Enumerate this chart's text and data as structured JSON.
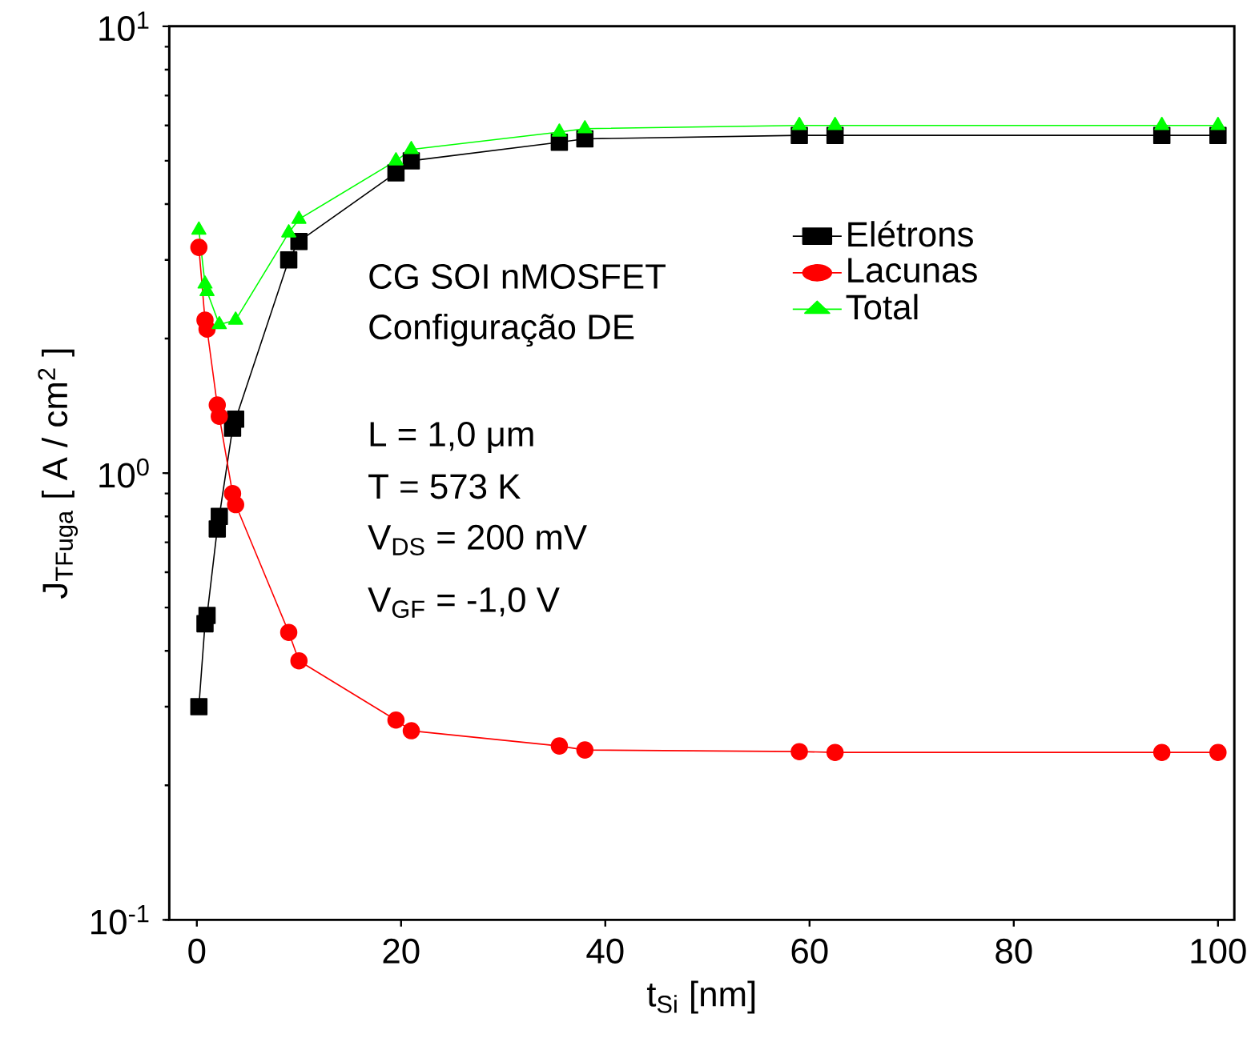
{
  "chart_data": {
    "type": "line",
    "xlabel": "t$_{Si}$ [nm]",
    "ylabel": "J$_{TFuga}$ [ A / cm$^{2}$ ]",
    "log": "y",
    "legend": "top right",
    "line_style": "solid",
    "xlim": [
      -2.7,
      101.6
    ],
    "xticks": [
      0,
      20,
      40,
      60,
      80,
      100
    ],
    "ylim": [
      0.1,
      10
    ],
    "yticks": [
      {
        "value": 0.1,
        "label": "10$^{-1}$"
      },
      {
        "value": 1,
        "label": "10$^{0}$"
      },
      {
        "value": 10,
        "label": "10$^{1}$"
      }
    ],
    "x": [
      0.2,
      0.8,
      1.0,
      2.0,
      2.2,
      3.5,
      3.8,
      9,
      10,
      19.5,
      21,
      35.5,
      38,
      59,
      62.5,
      94.5,
      100
    ],
    "series": [
      {
        "name": "Elétrons",
        "color": "#000000",
        "marker": "square",
        "values": [
          0.3,
          0.46,
          0.48,
          0.75,
          0.8,
          1.26,
          1.32,
          3.0,
          3.3,
          4.7,
          5.0,
          5.5,
          5.6,
          5.7,
          5.7,
          5.7,
          5.7
        ]
      },
      {
        "name": "Lacunas",
        "color": "#ff0000",
        "marker": "circle",
        "values": [
          3.2,
          2.2,
          2.1,
          1.42,
          1.34,
          0.9,
          0.85,
          0.44,
          0.38,
          0.28,
          0.265,
          0.245,
          0.24,
          0.238,
          0.237,
          0.237,
          0.237
        ]
      },
      {
        "name": "Total",
        "color": "#00ff00",
        "marker": "triangle",
        "values": [
          3.5,
          2.65,
          2.55,
          null,
          2.15,
          null,
          2.2,
          3.45,
          3.7,
          5.0,
          5.3,
          5.8,
          5.9,
          6.0,
          6.0,
          6.0,
          6.0
        ]
      }
    ],
    "annotations": [
      "CG SOI nMOSFET",
      "Configuração DE",
      "L = 1,0 μm",
      "T = 573 K",
      "V$_{DS}$ = 200 mV",
      "V$_{GF}$ = -1,0 V"
    ]
  }
}
